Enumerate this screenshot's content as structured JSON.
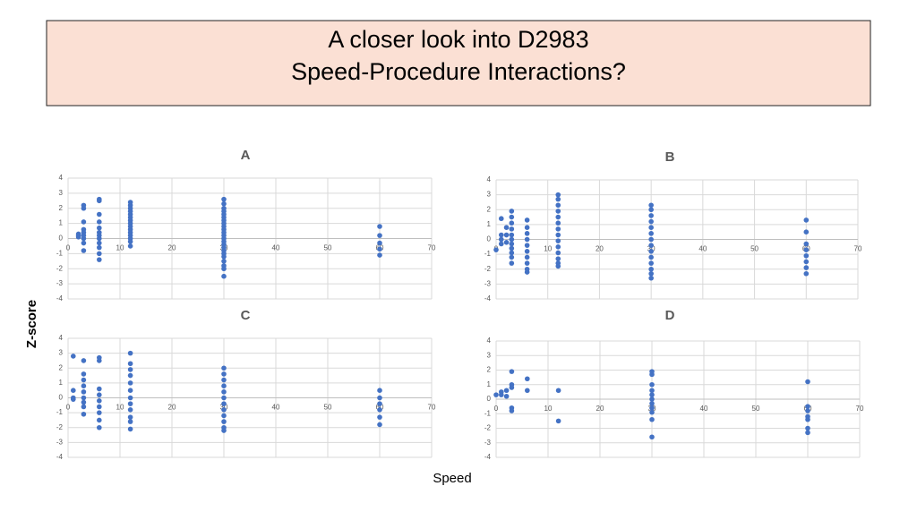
{
  "header": {
    "title_lines": [
      "A closer look into D2983",
      "Speed-Procedure Interactions?"
    ]
  },
  "y_label": "Z-score",
  "x_label": "Speed",
  "chart_data": [
    {
      "type": "scatter",
      "title": "A",
      "color": "#4472c4",
      "x": [
        2,
        2,
        2,
        3,
        3,
        3,
        3,
        3,
        3,
        3,
        3,
        3,
        6,
        6,
        6,
        6,
        6,
        6,
        6,
        6,
        6,
        6,
        6,
        6,
        12,
        12,
        12,
        12,
        12,
        12,
        12,
        12,
        12,
        12,
        12,
        12,
        12,
        12,
        12,
        30,
        30,
        30,
        30,
        30,
        30,
        30,
        30,
        30,
        30,
        30,
        30,
        30,
        30,
        30,
        30,
        30,
        30,
        30,
        30,
        30,
        30,
        30,
        60,
        60,
        60,
        60,
        60
      ],
      "values": [
        0.3,
        0.2,
        0.1,
        2.2,
        2.0,
        1.1,
        0.6,
        0.4,
        0.2,
        0,
        -0.3,
        -0.8,
        2.6,
        2.5,
        1.6,
        1.1,
        0.7,
        0.4,
        0.2,
        0,
        -0.3,
        -0.6,
        -1.0,
        -1.4,
        2.4,
        2.2,
        2.0,
        1.8,
        1.6,
        1.4,
        1.2,
        1.0,
        0.8,
        0.6,
        0.4,
        0.2,
        0,
        -0.2,
        -0.5,
        2.6,
        2.3,
        2.0,
        1.8,
        1.6,
        1.4,
        1.2,
        1.0,
        0.8,
        0.6,
        0.4,
        0.2,
        0,
        -0.2,
        -0.4,
        -0.6,
        -0.8,
        -1.0,
        -1.2,
        -1.5,
        -1.8,
        -2.0,
        -2.5,
        0.8,
        0.2,
        -0.3,
        -0.7,
        -1.1
      ],
      "xlim": [
        0,
        70
      ],
      "ylim": [
        -4,
        4
      ],
      "xticks": [
        0,
        10,
        20,
        30,
        40,
        50,
        60,
        70
      ],
      "yticks": [
        -4,
        -3,
        -2,
        -1,
        0,
        1,
        2,
        3,
        4
      ],
      "grid": true
    },
    {
      "type": "scatter",
      "title": "B",
      "color": "#4472c4",
      "x": [
        0,
        1,
        1,
        1,
        1,
        2,
        2,
        2,
        3,
        3,
        3,
        3,
        3,
        3,
        3,
        3,
        3,
        3,
        3,
        6,
        6,
        6,
        6,
        6,
        6,
        6,
        6,
        6,
        6,
        12,
        12,
        12,
        12,
        12,
        12,
        12,
        12,
        12,
        12,
        12,
        12,
        12,
        12,
        30,
        30,
        30,
        30,
        30,
        30,
        30,
        30,
        30,
        30,
        30,
        30,
        30,
        30,
        60,
        60,
        60,
        60,
        60,
        60,
        60,
        60
      ],
      "values": [
        -0.7,
        1.4,
        0.3,
        0,
        -0.3,
        0.8,
        0.3,
        -0.2,
        1.9,
        1.5,
        1.1,
        0.7,
        0.3,
        0,
        -0.3,
        -0.6,
        -0.9,
        -1.2,
        -1.6,
        1.3,
        0.8,
        0.4,
        0,
        -0.4,
        -0.8,
        -1.2,
        -1.6,
        -2.0,
        -2.2,
        3.0,
        2.7,
        2.3,
        1.9,
        1.5,
        1.1,
        0.7,
        0.3,
        -0.1,
        -0.5,
        -0.9,
        -1.3,
        -1.6,
        -1.8,
        2.3,
        2.0,
        1.6,
        1.2,
        0.8,
        0.4,
        0,
        -0.4,
        -0.8,
        -1.2,
        -1.6,
        -2.0,
        -2.3,
        -2.6,
        1.3,
        0.5,
        -0.3,
        -0.7,
        -1.1,
        -1.5,
        -1.9,
        -2.3
      ],
      "xlim": [
        0,
        70
      ],
      "ylim": [
        -4,
        4
      ],
      "xticks": [
        0,
        10,
        20,
        30,
        40,
        50,
        60,
        70
      ],
      "yticks": [
        -4,
        -3,
        -2,
        -1,
        0,
        1,
        2,
        3,
        4
      ],
      "grid": true
    },
    {
      "type": "scatter",
      "title": "C",
      "color": "#4472c4",
      "x": [
        1,
        1,
        1,
        1,
        3,
        3,
        3,
        3,
        3,
        3,
        3,
        3,
        3,
        6,
        6,
        6,
        6,
        6,
        6,
        6,
        6,
        6,
        12,
        12,
        12,
        12,
        12,
        12,
        12,
        12,
        12,
        12,
        12,
        12,
        30,
        30,
        30,
        30,
        30,
        30,
        30,
        30,
        30,
        30,
        30,
        30,
        60,
        60,
        60,
        60,
        60,
        60
      ],
      "values": [
        2.8,
        0.5,
        0,
        -0.1,
        2.5,
        1.6,
        1.2,
        0.8,
        0.4,
        0,
        -0.3,
        -0.6,
        -1.1,
        2.7,
        2.5,
        0.6,
        0.2,
        -0.2,
        -0.6,
        -1.0,
        -1.5,
        -2.0,
        3.0,
        2.3,
        1.9,
        1.5,
        1.0,
        0.5,
        0,
        -0.4,
        -0.8,
        -1.3,
        -1.6,
        -2.1,
        2.0,
        1.6,
        1.2,
        0.8,
        0.4,
        0,
        -0.4,
        -0.8,
        -1.2,
        -1.6,
        -2.0,
        -2.2,
        0.5,
        0,
        -0.4,
        -0.8,
        -1.3,
        -1.8
      ],
      "xlim": [
        0,
        70
      ],
      "ylim": [
        -4,
        4
      ],
      "xticks": [
        0,
        10,
        20,
        30,
        40,
        50,
        60,
        70
      ],
      "yticks": [
        -4,
        -3,
        -2,
        -1,
        0,
        1,
        2,
        3,
        4
      ],
      "grid": true
    },
    {
      "type": "scatter",
      "title": "D",
      "color": "#4472c4",
      "x": [
        0,
        1,
        1,
        2,
        2,
        3,
        3,
        3,
        3,
        3,
        6,
        6,
        12,
        12,
        30,
        30,
        30,
        30,
        30,
        30,
        30,
        30,
        30,
        30,
        30,
        60,
        60,
        60,
        60,
        60,
        60,
        60
      ],
      "values": [
        0.3,
        0.3,
        0.5,
        0.6,
        0.2,
        1.9,
        1.0,
        0.8,
        -0.6,
        -0.8,
        1.4,
        0.6,
        0.6,
        -1.5,
        1.9,
        1.7,
        1.0,
        0.6,
        0.3,
        0,
        -0.3,
        -0.6,
        -0.9,
        -1.4,
        -2.6,
        1.2,
        -0.5,
        -0.8,
        -1.2,
        -1.4,
        -2.0,
        -2.3
      ],
      "xlim": [
        0,
        70
      ],
      "ylim": [
        -4,
        4
      ],
      "xticks": [
        0,
        10,
        20,
        30,
        40,
        50,
        60,
        70
      ],
      "yticks": [
        -4,
        -3,
        -2,
        -1,
        0,
        1,
        2,
        3,
        4
      ],
      "grid": true
    }
  ]
}
